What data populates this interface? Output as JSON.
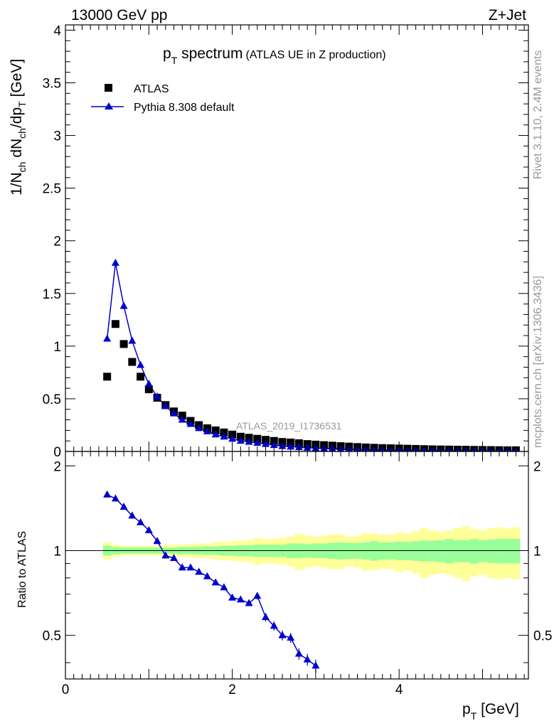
{
  "header": {
    "energy": "13000 GeV pp",
    "process": "Z+Jet",
    "side_rivet": "Rivet 3.1.10,  2.4M events",
    "side_mcplots": "mcplots.cern.ch [arXiv:1306.3436]",
    "analysis": "ATLAS_2019_I1736531"
  },
  "colors": {
    "data": "#000000",
    "mc": "#0000cc",
    "band_inner": "#99ff99",
    "band_outer": "#ffff99"
  },
  "chart_data": [
    {
      "type": "scatter",
      "panel": "main",
      "title": "p_T spectrum",
      "title_parts": {
        "main": "p",
        "sub": "T",
        "rest": " spectrum",
        "note": "(ATLAS UE in Z production)"
      },
      "ylabel": "1/N_ch dN_ch/dp_T [GeV]",
      "xlim": [
        0,
        5.55
      ],
      "ylim": [
        0,
        4.05
      ],
      "yticks": [
        0,
        0.5,
        1,
        1.5,
        2,
        2.5,
        3,
        3.5,
        4
      ],
      "ytick_labels": [
        "0",
        "0.5",
        "1",
        "1.5",
        "2",
        "2.5",
        "3",
        "3.5",
        "4"
      ],
      "legend_position": "top-left",
      "series": [
        {
          "name": "ATLAS",
          "marker": "square",
          "x": [
            0.5,
            0.6,
            0.7,
            0.8,
            0.9,
            1.0,
            1.1,
            1.2,
            1.3,
            1.4,
            1.5,
            1.6,
            1.7,
            1.8,
            1.9,
            2.0,
            2.1,
            2.2,
            2.3,
            2.4,
            2.5,
            2.6,
            2.7,
            2.8,
            2.9,
            3.0,
            3.1,
            3.2,
            3.3,
            3.4,
            3.5,
            3.6,
            3.7,
            3.8,
            3.9,
            4.0,
            4.1,
            4.2,
            4.3,
            4.4,
            4.5,
            4.6,
            4.7,
            4.8,
            4.9,
            5.0,
            5.1,
            5.2,
            5.3,
            5.4
          ],
          "y": [
            0.71,
            1.21,
            1.02,
            0.85,
            0.71,
            0.59,
            0.51,
            0.44,
            0.38,
            0.34,
            0.29,
            0.25,
            0.22,
            0.2,
            0.18,
            0.16,
            0.14,
            0.13,
            0.12,
            0.11,
            0.1,
            0.09,
            0.085,
            0.078,
            0.07,
            0.065,
            0.06,
            0.055,
            0.05,
            0.046,
            0.042,
            0.038,
            0.035,
            0.032,
            0.03,
            0.028,
            0.026,
            0.024,
            0.022,
            0.02,
            0.019,
            0.018,
            0.017,
            0.016,
            0.015,
            0.014,
            0.013,
            0.012,
            0.011,
            0.011
          ]
        },
        {
          "name": "Pythia 8.308 default",
          "marker": "triangle",
          "x": [
            0.5,
            0.6,
            0.7,
            0.8,
            0.9,
            1.0,
            1.1,
            1.2,
            1.3,
            1.4,
            1.5,
            1.6,
            1.7,
            1.8,
            1.9,
            2.0,
            2.1,
            2.2,
            2.3,
            2.4,
            2.5,
            2.6,
            2.7,
            2.8,
            2.9,
            3.0,
            3.1,
            3.2,
            3.3,
            3.4,
            3.5,
            3.6,
            3.7,
            3.8,
            3.9,
            4.0,
            4.1,
            4.2,
            4.3,
            4.4,
            4.5,
            4.6,
            4.7,
            4.8,
            4.9,
            5.0,
            5.1,
            5.2,
            5.3,
            5.4
          ],
          "y": [
            1.07,
            1.79,
            1.38,
            1.05,
            0.82,
            0.64,
            0.52,
            0.43,
            0.36,
            0.3,
            0.26,
            0.22,
            0.19,
            0.16,
            0.14,
            0.12,
            0.1,
            0.09,
            0.08,
            0.07,
            0.06,
            0.05,
            0.045,
            0.04,
            0.035,
            0.03,
            0.028,
            0.025,
            0.022,
            0.02,
            0.018,
            0.016,
            0.014,
            0.013,
            0.012,
            0.011,
            0.01,
            0.009,
            0.008,
            0.007,
            0.007,
            0.006,
            0.006,
            0.005,
            0.005,
            0.005,
            0.004,
            0.004,
            0.004,
            0.003
          ]
        }
      ]
    },
    {
      "type": "line",
      "panel": "ratio",
      "ylabel": "Ratio to ATLAS",
      "xlabel": "p_T [GeV]",
      "xlim": [
        0,
        5.55
      ],
      "ylim": [
        0.35,
        2.25
      ],
      "yscale": "log",
      "yticks": [
        0.5,
        1,
        2
      ],
      "ytick_labels": [
        "0.5",
        "1",
        "2"
      ],
      "xticks": [
        0,
        2,
        4
      ],
      "xtick_labels": [
        "0",
        "2",
        "4"
      ],
      "reference_line": 1,
      "band_x_edges": [
        0.45,
        0.55,
        0.65,
        0.75,
        0.85,
        0.95,
        1.05,
        1.15,
        1.25,
        1.35,
        1.45,
        1.55,
        1.65,
        1.75,
        1.85,
        1.95,
        2.05,
        2.15,
        2.25,
        2.35,
        2.45,
        2.55,
        2.65,
        2.75,
        2.85,
        2.95,
        3.05,
        3.15,
        3.25,
        3.35,
        3.45,
        3.55,
        3.65,
        3.75,
        3.85,
        3.95,
        4.05,
        4.15,
        4.25,
        4.35,
        4.45,
        4.55,
        4.65,
        4.75,
        4.85,
        4.95,
        5.05,
        5.15,
        5.25,
        5.35,
        5.45
      ],
      "band_inner": [
        0.04,
        0.03,
        0.025,
        0.025,
        0.025,
        0.025,
        0.025,
        0.025,
        0.025,
        0.03,
        0.03,
        0.03,
        0.035,
        0.035,
        0.04,
        0.04,
        0.045,
        0.045,
        0.05,
        0.05,
        0.05,
        0.05,
        0.06,
        0.06,
        0.055,
        0.06,
        0.06,
        0.065,
        0.07,
        0.065,
        0.065,
        0.07,
        0.08,
        0.07,
        0.07,
        0.075,
        0.075,
        0.08,
        0.085,
        0.085,
        0.09,
        0.1,
        0.09,
        0.09,
        0.1,
        0.09,
        0.095,
        0.1,
        0.1,
        0.1
      ],
      "band_outer": [
        0.07,
        0.05,
        0.04,
        0.04,
        0.04,
        0.04,
        0.04,
        0.045,
        0.05,
        0.05,
        0.055,
        0.06,
        0.06,
        0.07,
        0.075,
        0.08,
        0.085,
        0.09,
        0.11,
        0.1,
        0.1,
        0.11,
        0.12,
        0.15,
        0.13,
        0.12,
        0.13,
        0.14,
        0.14,
        0.12,
        0.13,
        0.15,
        0.15,
        0.14,
        0.14,
        0.16,
        0.15,
        0.17,
        0.2,
        0.18,
        0.17,
        0.18,
        0.2,
        0.22,
        0.19,
        0.18,
        0.2,
        0.21,
        0.2,
        0.21
      ],
      "series": [
        {
          "name": "Pythia 8.308 default",
          "x": [
            0.5,
            0.6,
            0.7,
            0.8,
            0.9,
            1.0,
            1.1,
            1.2,
            1.3,
            1.4,
            1.5,
            1.6,
            1.7,
            1.8,
            1.9,
            2.0,
            2.1,
            2.2,
            2.3,
            2.4,
            2.5,
            2.6,
            2.7,
            2.8,
            2.9,
            3.0
          ],
          "y": [
            1.58,
            1.53,
            1.43,
            1.33,
            1.26,
            1.18,
            1.08,
            0.96,
            0.94,
            0.87,
            0.87,
            0.84,
            0.81,
            0.77,
            0.74,
            0.68,
            0.67,
            0.65,
            0.69,
            0.58,
            0.54,
            0.5,
            0.49,
            0.43,
            0.41,
            0.39
          ],
          "yerr": [
            0.01,
            0.01,
            0.01,
            0.01,
            0.01,
            0.01,
            0.01,
            0.01,
            0.01,
            0.01,
            0.01,
            0.01,
            0.01,
            0.01,
            0.01,
            0.01,
            0.01,
            0.01,
            0.02,
            0.02,
            0.02,
            0.02,
            0.02,
            0.02,
            0.02,
            0.02
          ]
        }
      ]
    }
  ]
}
